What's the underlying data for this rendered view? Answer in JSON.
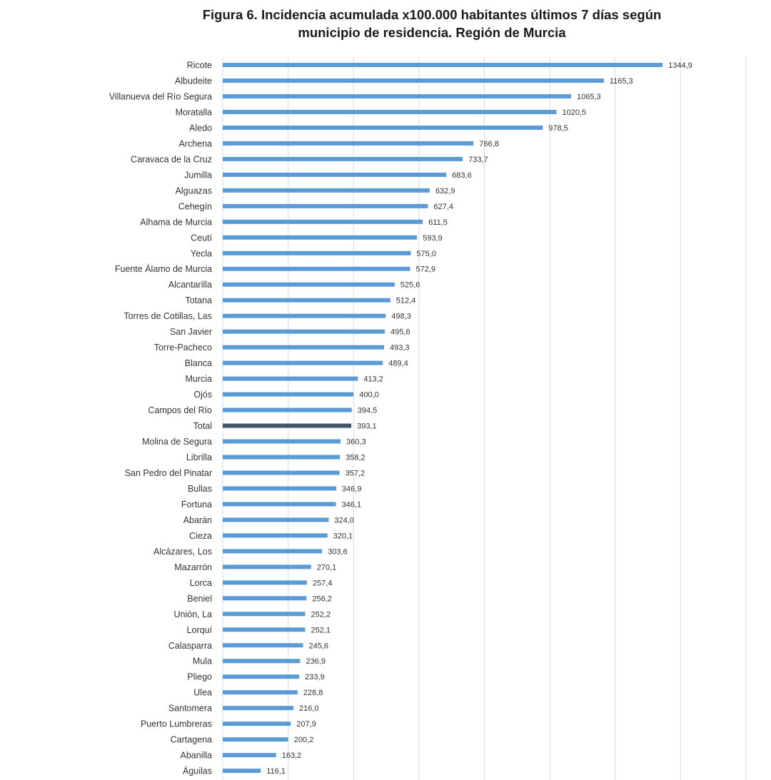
{
  "chart_data": {
    "type": "bar",
    "orientation": "horizontal",
    "title_line1": "Figura 6. Incidencia acumulada x100.000 habitantes últimos 7 días según",
    "title_line2": "municipio de residencia. Región de Murcia",
    "xlim": [
      0,
      1600
    ],
    "grid": true,
    "grid_step": 200,
    "axis_tick_labels_shown": false,
    "legend": "none",
    "colors": {
      "bar": "#5b9bd5",
      "highlight": "#44546a",
      "grid": "#d9d9d9"
    },
    "highlight_category": "Total",
    "decimal_separator": ",",
    "categories": [
      "Ricote",
      "Albudeite",
      "Villanueva del Río Segura",
      "Moratalla",
      "Aledo",
      "Archena",
      "Caravaca de la Cruz",
      "Jumilla",
      "Alguazas",
      "Cehegín",
      "Alhama de Murcia",
      "Ceutí",
      "Yecla",
      "Fuente Álamo de Murcia",
      "Alcantarilla",
      "Totana",
      "Torres de Cotillas, Las",
      "San Javier",
      "Torre-Pacheco",
      "Blanca",
      "Murcia",
      "Ojós",
      "Campos del Río",
      "Total",
      "Molina de Segura",
      "Librilla",
      "San Pedro del Pinatar",
      "Bullas",
      "Fortuna",
      "Abarán",
      "Cieza",
      "Alcázares, Los",
      "Mazarrón",
      "Lorca",
      "Beniel",
      "Unión, La",
      "Lorquí",
      "Calasparra",
      "Mula",
      "Pliego",
      "Ulea",
      "Santomera",
      "Puerto Lumbreras",
      "Cartagena",
      "Abanilla",
      "Águilas"
    ],
    "values": [
      1344.9,
      1165.3,
      1065.3,
      1020.5,
      978.5,
      766.8,
      733.7,
      683.6,
      632.9,
      627.4,
      611.5,
      593.9,
      575.0,
      572.9,
      525.6,
      512.4,
      498.3,
      495.6,
      493.3,
      489.4,
      413.2,
      400.0,
      394.5,
      393.1,
      360.3,
      358.2,
      357.2,
      346.9,
      346.1,
      324.0,
      320.1,
      303.6,
      270.1,
      257.4,
      256.2,
      252.2,
      252.1,
      245.6,
      236.9,
      233.9,
      228.8,
      216.0,
      207.9,
      200.2,
      163.2,
      116.1
    ]
  }
}
